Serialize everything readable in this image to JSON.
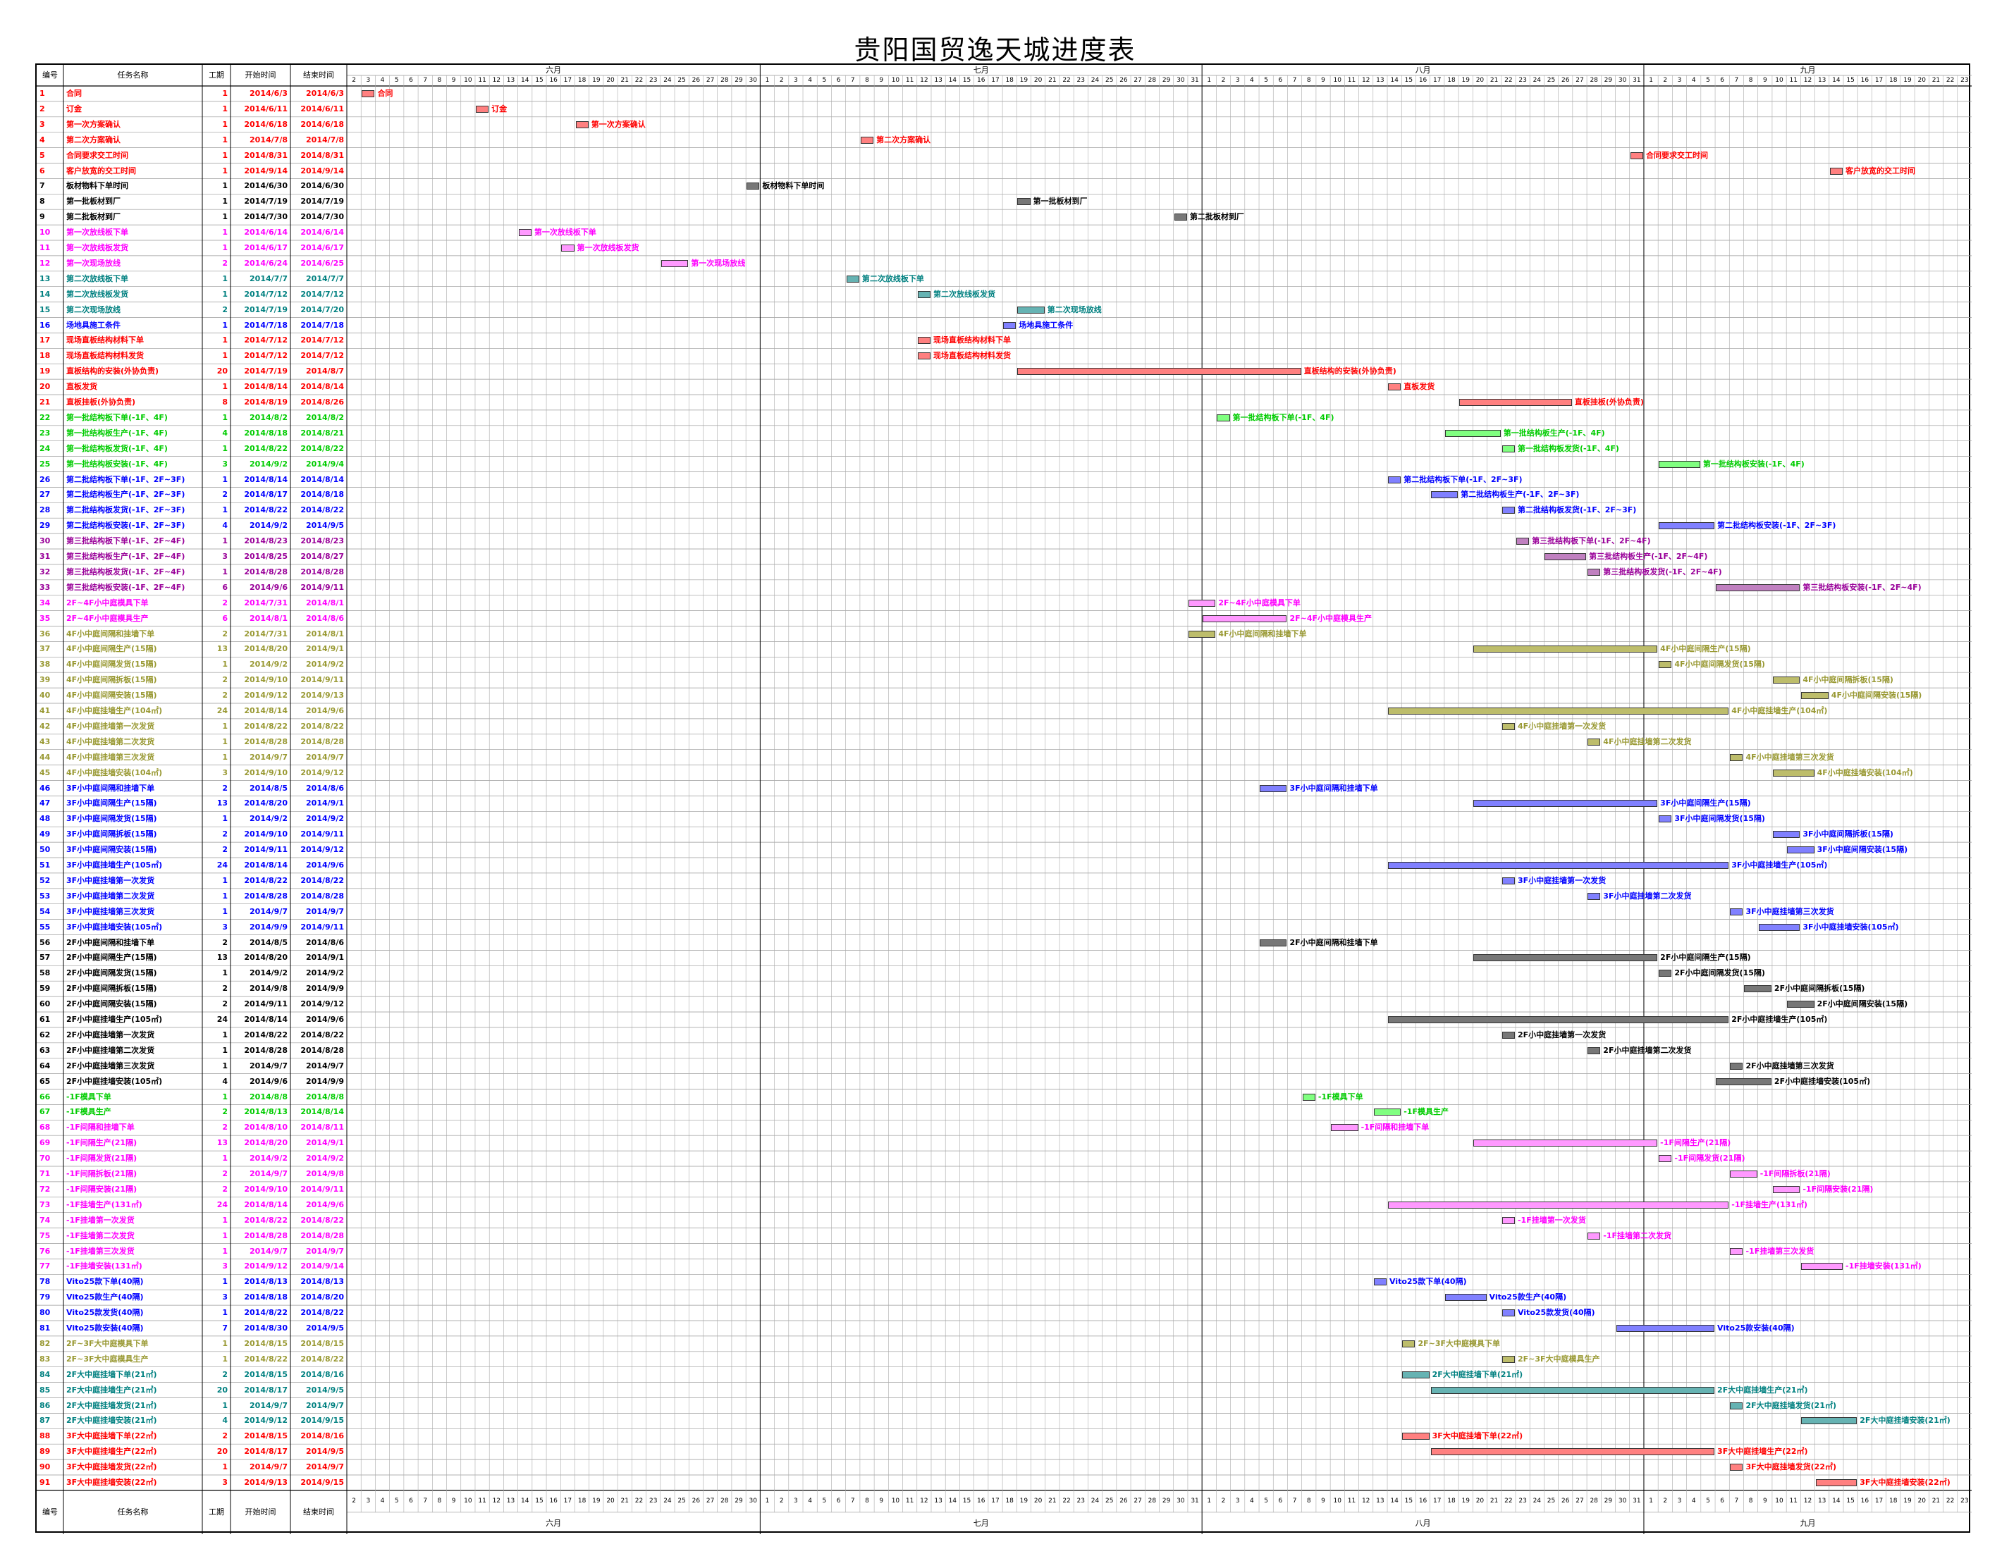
{
  "title": "贵阳国贸逸天城进度表",
  "headers": {
    "id": "编号",
    "name": "任务名称",
    "dur": "工期",
    "start": "开始时间",
    "end": "结束时间"
  },
  "months": [
    "六月",
    "七月",
    "八月",
    "九月"
  ],
  "days": [
    2,
    3,
    4,
    5,
    6,
    7,
    8,
    9,
    10,
    11,
    12,
    13,
    14,
    15,
    16,
    17,
    18,
    19,
    20,
    21,
    22,
    23,
    24,
    25,
    26,
    27,
    28,
    29,
    30,
    1,
    2,
    3,
    4,
    5,
    6,
    7,
    8,
    9,
    10,
    11,
    12,
    13,
    14,
    15,
    16,
    17,
    18,
    19,
    20,
    21,
    22,
    23,
    24,
    25,
    26,
    27,
    28,
    29,
    30,
    31,
    1,
    2,
    3,
    4,
    5,
    6,
    7,
    8,
    9,
    10,
    11,
    12,
    13,
    14,
    15,
    16,
    17,
    18,
    19,
    20,
    21,
    22,
    23,
    24,
    25,
    26,
    27,
    28,
    29,
    30,
    31,
    1,
    2,
    3,
    4,
    5,
    6,
    7,
    8,
    9,
    10,
    11,
    12,
    13,
    14,
    15,
    16,
    17,
    18,
    19,
    20,
    21,
    22,
    23
  ],
  "colors": {
    "red": "#ff0000",
    "dark": "#000000",
    "magenta": "#ff00ff",
    "teal": "#008080",
    "blue": "#0000ff",
    "green": "#00cc00",
    "olive": "#999933",
    "grey": "#666666"
  },
  "tasks": [
    {
      "id": "1",
      "name": "合同",
      "dur": "1",
      "start": "2014/6/3",
      "end": "2014/6/3",
      "color": "red",
      "s": 1,
      "e": 1
    },
    {
      "id": "2",
      "name": "订金",
      "dur": "1",
      "start": "2014/6/11",
      "end": "2014/6/11",
      "color": "red",
      "s": 9,
      "e": 9
    },
    {
      "id": "3",
      "name": "第一次方案确认",
      "dur": "1",
      "start": "2014/6/18",
      "end": "2014/6/18",
      "color": "red",
      "s": 16,
      "e": 16
    },
    {
      "id": "4",
      "name": "第二次方案确认",
      "dur": "1",
      "start": "2014/7/8",
      "end": "2014/7/8",
      "color": "red",
      "s": 36,
      "e": 36
    },
    {
      "id": "5",
      "name": "合同要求交工时间",
      "dur": "1",
      "start": "2014/8/31",
      "end": "2014/8/31",
      "color": "red",
      "s": 90,
      "e": 90
    },
    {
      "id": "6",
      "name": "客户放宽的交工时间",
      "dur": "1",
      "start": "2014/9/14",
      "end": "2014/9/14",
      "color": "red",
      "s": 104,
      "e": 104
    },
    {
      "id": "7",
      "name": "板材物料下单时间",
      "dur": "1",
      "start": "2014/6/30",
      "end": "2014/6/30",
      "color": "dark",
      "s": 28,
      "e": 28
    },
    {
      "id": "8",
      "name": "第一批板材到厂",
      "dur": "1",
      "start": "2014/7/19",
      "end": "2014/7/19",
      "color": "dark",
      "s": 47,
      "e": 47
    },
    {
      "id": "9",
      "name": "第二批板材到厂",
      "dur": "1",
      "start": "2014/7/30",
      "end": "2014/7/30",
      "color": "dark",
      "s": 58,
      "e": 58
    },
    {
      "id": "10",
      "name": "第一次放线板下单",
      "dur": "1",
      "start": "2014/6/14",
      "end": "2014/6/14",
      "color": "magenta",
      "s": 12,
      "e": 12
    },
    {
      "id": "11",
      "name": "第一次放线板发货",
      "dur": "1",
      "start": "2014/6/17",
      "end": "2014/6/17",
      "color": "magenta",
      "s": 15,
      "e": 15
    },
    {
      "id": "12",
      "name": "第一次现场放线",
      "dur": "2",
      "start": "2014/6/24",
      "end": "2014/6/25",
      "color": "magenta",
      "s": 22,
      "e": 23
    },
    {
      "id": "13",
      "name": "第二次放线板下单",
      "dur": "1",
      "start": "2014/7/7",
      "end": "2014/7/7",
      "color": "teal",
      "s": 35,
      "e": 35
    },
    {
      "id": "14",
      "name": "第二次放线板发货",
      "dur": "1",
      "start": "2014/7/12",
      "end": "2014/7/12",
      "color": "teal",
      "s": 40,
      "e": 40
    },
    {
      "id": "15",
      "name": "第二次现场放线",
      "dur": "2",
      "start": "2014/7/19",
      "end": "2014/7/20",
      "color": "teal",
      "s": 47,
      "e": 48
    },
    {
      "id": "16",
      "name": "场地具施工条件",
      "dur": "1",
      "start": "2014/7/18",
      "end": "2014/7/18",
      "color": "blue",
      "s": 46,
      "e": 46
    },
    {
      "id": "17",
      "name": "现场直板结构材料下单",
      "dur": "1",
      "start": "2014/7/12",
      "end": "2014/7/12",
      "color": "red",
      "s": 40,
      "e": 40
    },
    {
      "id": "18",
      "name": "现场直板结构材料发货",
      "dur": "1",
      "start": "2014/7/12",
      "end": "2014/7/12",
      "color": "red",
      "s": 40,
      "e": 40
    },
    {
      "id": "19",
      "name": "直板结构的安装(外协负责)",
      "dur": "20",
      "start": "2014/7/19",
      "end": "2014/8/7",
      "color": "red",
      "s": 47,
      "e": 66
    },
    {
      "id": "20",
      "name": "直板发货",
      "dur": "1",
      "start": "2014/8/14",
      "end": "2014/8/14",
      "color": "red",
      "s": 73,
      "e": 73
    },
    {
      "id": "21",
      "name": "直板挂板(外协负责)",
      "dur": "8",
      "start": "2014/8/19",
      "end": "2014/8/26",
      "color": "red",
      "s": 78,
      "e": 85
    },
    {
      "id": "22",
      "name": "第一批结构板下单(-1F、4F)",
      "dur": "1",
      "start": "2014/8/2",
      "end": "2014/8/2",
      "color": "green",
      "s": 61,
      "e": 61
    },
    {
      "id": "23",
      "name": "第一批结构板生产(-1F、4F)",
      "dur": "4",
      "start": "2014/8/18",
      "end": "2014/8/21",
      "color": "green",
      "s": 77,
      "e": 80
    },
    {
      "id": "24",
      "name": "第一批结构板发货(-1F、4F)",
      "dur": "1",
      "start": "2014/8/22",
      "end": "2014/8/22",
      "color": "green",
      "s": 81,
      "e": 81
    },
    {
      "id": "25",
      "name": "第一批结构板安装(-1F、4F)",
      "dur": "3",
      "start": "2014/9/2",
      "end": "2014/9/4",
      "color": "green",
      "s": 92,
      "e": 94
    },
    {
      "id": "26",
      "name": "第二批结构板下单(-1F、2F~3F)",
      "dur": "1",
      "start": "2014/8/14",
      "end": "2014/8/14",
      "color": "blue",
      "s": 73,
      "e": 73
    },
    {
      "id": "27",
      "name": "第二批结构板生产(-1F、2F~3F)",
      "dur": "2",
      "start": "2014/8/17",
      "end": "2014/8/18",
      "color": "blue",
      "s": 76,
      "e": 77
    },
    {
      "id": "28",
      "name": "第二批结构板发货(-1F、2F~3F)",
      "dur": "1",
      "start": "2014/8/22",
      "end": "2014/8/22",
      "color": "blue",
      "s": 81,
      "e": 81
    },
    {
      "id": "29",
      "name": "第二批结构板安装(-1F、2F~3F)",
      "dur": "4",
      "start": "2014/9/2",
      "end": "2014/9/5",
      "color": "blue",
      "s": 92,
      "e": 95
    },
    {
      "id": "30",
      "name": "第三批结构板下单(-1F、2F~4F)",
      "dur": "1",
      "start": "2014/8/23",
      "end": "2014/8/23",
      "color": "purple",
      "s": 82,
      "e": 82
    },
    {
      "id": "31",
      "name": "第三批结构板生产(-1F、2F~4F)",
      "dur": "3",
      "start": "2014/8/25",
      "end": "2014/8/27",
      "color": "purple",
      "s": 84,
      "e": 86
    },
    {
      "id": "32",
      "name": "第三批结构板发货(-1F、2F~4F)",
      "dur": "1",
      "start": "2014/8/28",
      "end": "2014/8/28",
      "color": "purple",
      "s": 87,
      "e": 87
    },
    {
      "id": "33",
      "name": "第三批结构板安装(-1F、2F~4F)",
      "dur": "6",
      "start": "2014/9/6",
      "end": "2014/9/11",
      "color": "purple",
      "s": 96,
      "e": 101
    },
    {
      "id": "34",
      "name": "2F~4F小中庭模具下单",
      "dur": "2",
      "start": "2014/7/31",
      "end": "2014/8/1",
      "color": "magenta",
      "s": 59,
      "e": 60
    },
    {
      "id": "35",
      "name": "2F~4F小中庭模具生产",
      "dur": "6",
      "start": "2014/8/1",
      "end": "2014/8/6",
      "color": "magenta",
      "s": 60,
      "e": 65
    },
    {
      "id": "36",
      "name": "4F小中庭间隔和挂墙下单",
      "dur": "2",
      "start": "2014/7/31",
      "end": "2014/8/1",
      "color": "olive",
      "s": 59,
      "e": 60
    },
    {
      "id": "37",
      "name": "4F小中庭间隔生产(15隔)",
      "dur": "13",
      "start": "2014/8/20",
      "end": "2014/9/1",
      "color": "olive",
      "s": 79,
      "e": 91
    },
    {
      "id": "38",
      "name": "4F小中庭间隔发货(15隔)",
      "dur": "1",
      "start": "2014/9/2",
      "end": "2014/9/2",
      "color": "olive",
      "s": 92,
      "e": 92
    },
    {
      "id": "39",
      "name": "4F小中庭间隔拆板(15隔)",
      "dur": "2",
      "start": "2014/9/10",
      "end": "2014/9/11",
      "color": "olive",
      "s": 100,
      "e": 101
    },
    {
      "id": "40",
      "name": "4F小中庭间隔安装(15隔)",
      "dur": "2",
      "start": "2014/9/12",
      "end": "2014/9/13",
      "color": "olive",
      "s": 102,
      "e": 103
    },
    {
      "id": "41",
      "name": "4F小中庭挂墙生产(104㎡)",
      "dur": "24",
      "start": "2014/8/14",
      "end": "2014/9/6",
      "color": "olive",
      "s": 73,
      "e": 96
    },
    {
      "id": "42",
      "name": "4F小中庭挂墙第一次发货",
      "dur": "1",
      "start": "2014/8/22",
      "end": "2014/8/22",
      "color": "olive",
      "s": 81,
      "e": 81
    },
    {
      "id": "43",
      "name": "4F小中庭挂墙第二次发货",
      "dur": "1",
      "start": "2014/8/28",
      "end": "2014/8/28",
      "color": "olive",
      "s": 87,
      "e": 87
    },
    {
      "id": "44",
      "name": "4F小中庭挂墙第三次发货",
      "dur": "1",
      "start": "2014/9/7",
      "end": "2014/9/7",
      "color": "olive",
      "s": 97,
      "e": 97
    },
    {
      "id": "45",
      "name": "4F小中庭挂墙安装(104㎡)",
      "dur": "3",
      "start": "2014/9/10",
      "end": "2014/9/12",
      "color": "olive",
      "s": 100,
      "e": 102
    },
    {
      "id": "46",
      "name": "3F小中庭间隔和挂墙下单",
      "dur": "2",
      "start": "2014/8/5",
      "end": "2014/8/6",
      "color": "blue",
      "s": 64,
      "e": 65
    },
    {
      "id": "47",
      "name": "3F小中庭间隔生产(15隔)",
      "dur": "13",
      "start": "2014/8/20",
      "end": "2014/9/1",
      "color": "blue",
      "s": 79,
      "e": 91
    },
    {
      "id": "48",
      "name": "3F小中庭间隔发货(15隔)",
      "dur": "1",
      "start": "2014/9/2",
      "end": "2014/9/2",
      "color": "blue",
      "s": 92,
      "e": 92
    },
    {
      "id": "49",
      "name": "3F小中庭间隔拆板(15隔)",
      "dur": "2",
      "start": "2014/9/10",
      "end": "2014/9/11",
      "color": "blue",
      "s": 100,
      "e": 101
    },
    {
      "id": "50",
      "name": "3F小中庭间隔安装(15隔)",
      "dur": "2",
      "start": "2014/9/11",
      "end": "2014/9/12",
      "color": "blue",
      "s": 101,
      "e": 102
    },
    {
      "id": "51",
      "name": "3F小中庭挂墙生产(105㎡)",
      "dur": "24",
      "start": "2014/8/14",
      "end": "2014/9/6",
      "color": "blue",
      "s": 73,
      "e": 96
    },
    {
      "id": "52",
      "name": "3F小中庭挂墙第一次发货",
      "dur": "1",
      "start": "2014/8/22",
      "end": "2014/8/22",
      "color": "blue",
      "s": 81,
      "e": 81
    },
    {
      "id": "53",
      "name": "3F小中庭挂墙第二次发货",
      "dur": "1",
      "start": "2014/8/28",
      "end": "2014/8/28",
      "color": "blue",
      "s": 87,
      "e": 87
    },
    {
      "id": "54",
      "name": "3F小中庭挂墙第三次发货",
      "dur": "1",
      "start": "2014/9/7",
      "end": "2014/9/7",
      "color": "blue",
      "s": 97,
      "e": 97
    },
    {
      "id": "55",
      "name": "3F小中庭挂墙安装(105㎡)",
      "dur": "3",
      "start": "2014/9/9",
      "end": "2014/9/11",
      "color": "blue",
      "s": 99,
      "e": 101
    },
    {
      "id": "56",
      "name": "2F小中庭间隔和挂墙下单",
      "dur": "2",
      "start": "2014/8/5",
      "end": "2014/8/6",
      "color": "dark",
      "s": 64,
      "e": 65
    },
    {
      "id": "57",
      "name": "2F小中庭间隔生产(15隔)",
      "dur": "13",
      "start": "2014/8/20",
      "end": "2014/9/1",
      "color": "dark",
      "s": 79,
      "e": 91
    },
    {
      "id": "58",
      "name": "2F小中庭间隔发货(15隔)",
      "dur": "1",
      "start": "2014/9/2",
      "end": "2014/9/2",
      "color": "dark",
      "s": 92,
      "e": 92
    },
    {
      "id": "59",
      "name": "2F小中庭间隔拆板(15隔)",
      "dur": "2",
      "start": "2014/9/8",
      "end": "2014/9/9",
      "color": "dark",
      "s": 98,
      "e": 99
    },
    {
      "id": "60",
      "name": "2F小中庭间隔安装(15隔)",
      "dur": "2",
      "start": "2014/9/11",
      "end": "2014/9/12",
      "color": "dark",
      "s": 101,
      "e": 102
    },
    {
      "id": "61",
      "name": "2F小中庭挂墙生产(105㎡)",
      "dur": "24",
      "start": "2014/8/14",
      "end": "2014/9/6",
      "color": "dark",
      "s": 73,
      "e": 96
    },
    {
      "id": "62",
      "name": "2F小中庭挂墙第一次发货",
      "dur": "1",
      "start": "2014/8/22",
      "end": "2014/8/22",
      "color": "dark",
      "s": 81,
      "e": 81
    },
    {
      "id": "63",
      "name": "2F小中庭挂墙第二次发货",
      "dur": "1",
      "start": "2014/8/28",
      "end": "2014/8/28",
      "color": "dark",
      "s": 87,
      "e": 87
    },
    {
      "id": "64",
      "name": "2F小中庭挂墙第三次发货",
      "dur": "1",
      "start": "2014/9/7",
      "end": "2014/9/7",
      "color": "dark",
      "s": 97,
      "e": 97
    },
    {
      "id": "65",
      "name": "2F小中庭挂墙安装(105㎡)",
      "dur": "4",
      "start": "2014/9/6",
      "end": "2014/9/9",
      "color": "dark",
      "s": 96,
      "e": 99
    },
    {
      "id": "66",
      "name": "-1F模具下单",
      "dur": "1",
      "start": "2014/8/8",
      "end": "2014/8/8",
      "color": "green",
      "s": 67,
      "e": 67
    },
    {
      "id": "67",
      "name": "-1F模具生产",
      "dur": "2",
      "start": "2014/8/13",
      "end": "2014/8/14",
      "color": "green",
      "s": 72,
      "e": 73
    },
    {
      "id": "68",
      "name": "-1F间隔和挂墙下单",
      "dur": "2",
      "start": "2014/8/10",
      "end": "2014/8/11",
      "color": "magenta",
      "s": 69,
      "e": 70
    },
    {
      "id": "69",
      "name": "-1F间隔生产(21隔)",
      "dur": "13",
      "start": "2014/8/20",
      "end": "2014/9/1",
      "color": "magenta",
      "s": 79,
      "e": 91
    },
    {
      "id": "70",
      "name": "-1F间隔发货(21隔)",
      "dur": "1",
      "start": "2014/9/2",
      "end": "2014/9/2",
      "color": "magenta",
      "s": 92,
      "e": 92
    },
    {
      "id": "71",
      "name": "-1F间隔拆板(21隔)",
      "dur": "2",
      "start": "2014/9/7",
      "end": "2014/9/8",
      "color": "magenta",
      "s": 97,
      "e": 98
    },
    {
      "id": "72",
      "name": "-1F间隔安装(21隔)",
      "dur": "2",
      "start": "2014/9/10",
      "end": "2014/9/11",
      "color": "magenta",
      "s": 100,
      "e": 101
    },
    {
      "id": "73",
      "name": "-1F挂墙生产(131㎡)",
      "dur": "24",
      "start": "2014/8/14",
      "end": "2014/9/6",
      "color": "magenta",
      "s": 73,
      "e": 96
    },
    {
      "id": "74",
      "name": "-1F挂墙第一次发货",
      "dur": "1",
      "start": "2014/8/22",
      "end": "2014/8/22",
      "color": "magenta",
      "s": 81,
      "e": 81
    },
    {
      "id": "75",
      "name": "-1F挂墙第二次发货",
      "dur": "1",
      "start": "2014/8/28",
      "end": "2014/8/28",
      "color": "magenta",
      "s": 87,
      "e": 87
    },
    {
      "id": "76",
      "name": "-1F挂墙第三次发货",
      "dur": "1",
      "start": "2014/9/7",
      "end": "2014/9/7",
      "color": "magenta",
      "s": 97,
      "e": 97
    },
    {
      "id": "77",
      "name": "-1F挂墙安装(131㎡)",
      "dur": "3",
      "start": "2014/9/12",
      "end": "2014/9/14",
      "color": "magenta",
      "s": 102,
      "e": 104
    },
    {
      "id": "78",
      "name": "Vito25款下单(40隔)",
      "dur": "1",
      "start": "2014/8/13",
      "end": "2014/8/13",
      "color": "blue",
      "s": 72,
      "e": 72
    },
    {
      "id": "79",
      "name": "Vito25款生产(40隔)",
      "dur": "3",
      "start": "2014/8/18",
      "end": "2014/8/20",
      "color": "blue",
      "s": 77,
      "e": 79
    },
    {
      "id": "80",
      "name": "Vito25款发货(40隔)",
      "dur": "1",
      "start": "2014/8/22",
      "end": "2014/8/22",
      "color": "blue",
      "s": 81,
      "e": 81
    },
    {
      "id": "81",
      "name": "Vito25款安装(40隔)",
      "dur": "7",
      "start": "2014/8/30",
      "end": "2014/9/5",
      "color": "blue",
      "s": 89,
      "e": 95
    },
    {
      "id": "82",
      "name": "2F~3F大中庭模具下单",
      "dur": "1",
      "start": "2014/8/15",
      "end": "2014/8/15",
      "color": "olive",
      "s": 74,
      "e": 74
    },
    {
      "id": "83",
      "name": "2F~3F大中庭模具生产",
      "dur": "1",
      "start": "2014/8/22",
      "end": "2014/8/22",
      "color": "olive",
      "s": 81,
      "e": 81
    },
    {
      "id": "84",
      "name": "2F大中庭挂墙下单(21㎡)",
      "dur": "2",
      "start": "2014/8/15",
      "end": "2014/8/16",
      "color": "teal",
      "s": 74,
      "e": 75
    },
    {
      "id": "85",
      "name": "2F大中庭挂墙生产(21㎡)",
      "dur": "20",
      "start": "2014/8/17",
      "end": "2014/9/5",
      "color": "teal",
      "s": 76,
      "e": 95
    },
    {
      "id": "86",
      "name": "2F大中庭挂墙发货(21㎡)",
      "dur": "1",
      "start": "2014/9/7",
      "end": "2014/9/7",
      "color": "teal",
      "s": 97,
      "e": 97
    },
    {
      "id": "87",
      "name": "2F大中庭挂墙安装(21㎡)",
      "dur": "4",
      "start": "2014/9/12",
      "end": "2014/9/15",
      "color": "teal",
      "s": 102,
      "e": 105
    },
    {
      "id": "88",
      "name": "3F大中庭挂墙下单(22㎡)",
      "dur": "2",
      "start": "2014/8/15",
      "end": "2014/8/16",
      "color": "red",
      "s": 74,
      "e": 75
    },
    {
      "id": "89",
      "name": "3F大中庭挂墙生产(22㎡)",
      "dur": "20",
      "start": "2014/8/17",
      "end": "2014/9/5",
      "color": "red",
      "s": 76,
      "e": 95
    },
    {
      "id": "90",
      "name": "3F大中庭挂墙发货(22㎡)",
      "dur": "1",
      "start": "2014/9/7",
      "end": "2014/9/7",
      "color": "red",
      "s": 97,
      "e": 97
    },
    {
      "id": "91",
      "name": "3F大中庭挂墙安装(22㎡)",
      "dur": "3",
      "start": "2014/9/13",
      "end": "2014/9/15",
      "color": "red",
      "s": 103,
      "e": 105
    }
  ]
}
